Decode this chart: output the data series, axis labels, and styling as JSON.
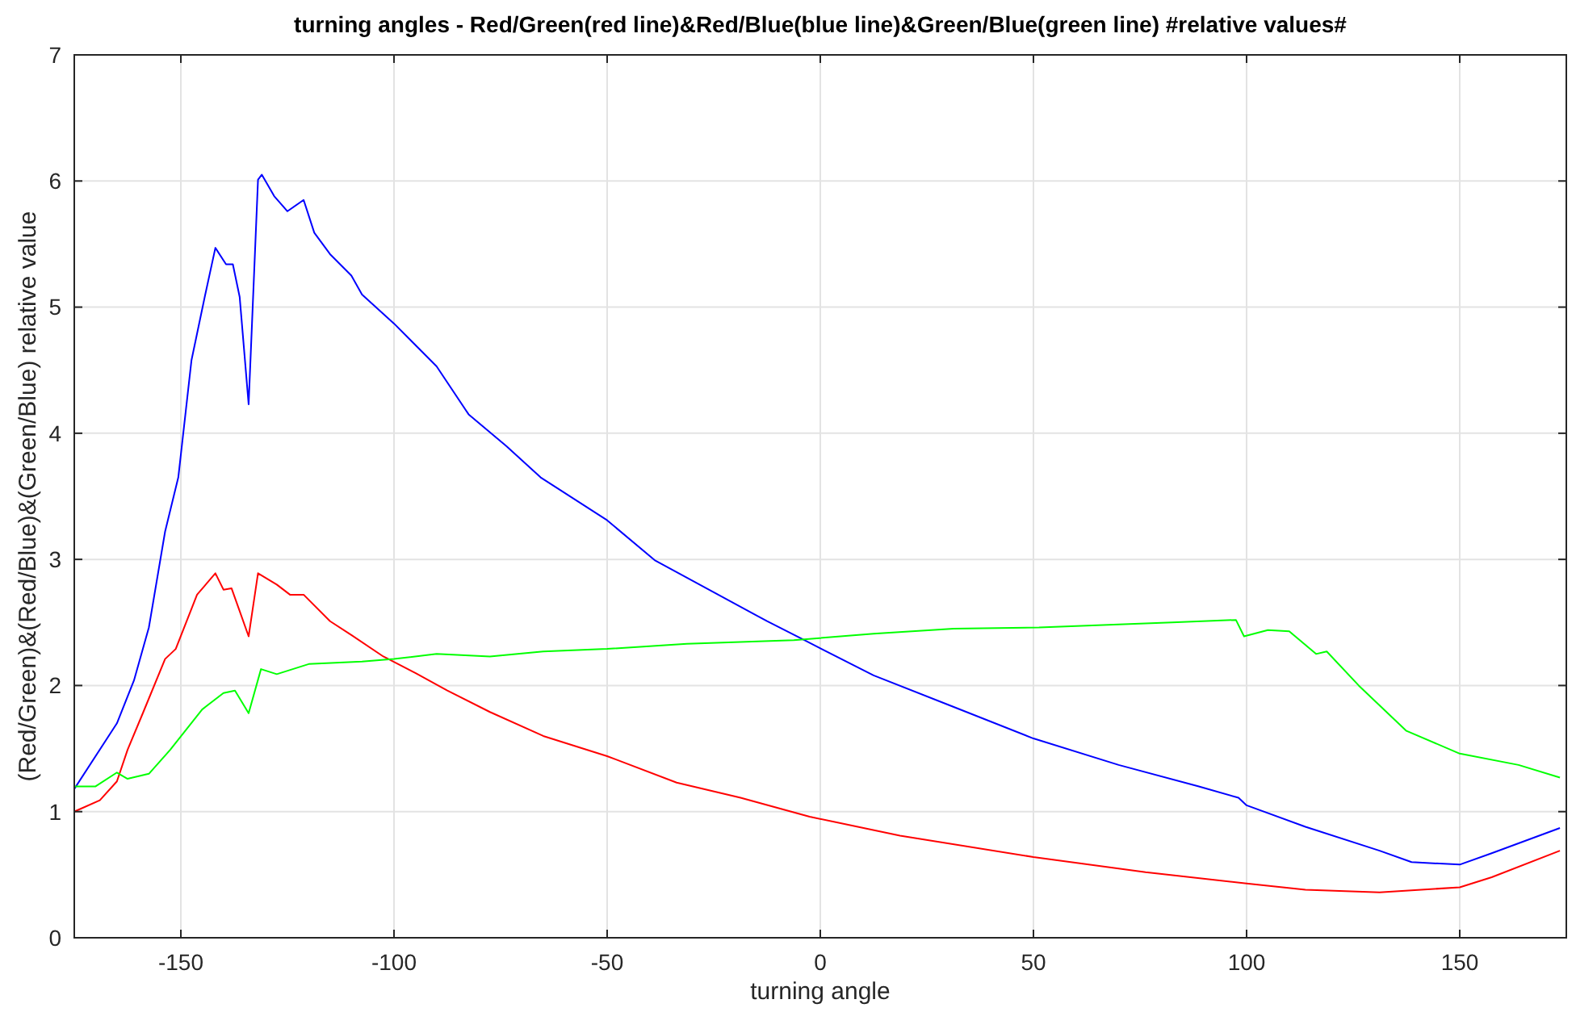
{
  "chart_data": {
    "type": "line",
    "title": "turning angles - Red/Green(red line)&Red/Blue(blue line)&Green/Blue(green line) #relative values#",
    "xlabel": "turning angle",
    "ylabel": "(Red/Green)&(Red/Blue)&(Green/Blue) relative value",
    "xlim": [
      -175,
      175
    ],
    "ylim": [
      0,
      7
    ],
    "xticks": [
      -150,
      -100,
      -50,
      0,
      50,
      100,
      150
    ],
    "yticks": [
      0,
      1,
      2,
      3,
      4,
      5,
      6,
      7
    ],
    "grid": true,
    "line_style": "solid",
    "marker": "none",
    "series": [
      {
        "color": "#0000ff",
        "x": [
          -175,
          -165,
          -161,
          -157.5,
          -153.7,
          -150.6,
          -147.5,
          -144.4,
          -141.9,
          -139.4,
          -137.8,
          -136.2,
          -134.1,
          -131.9,
          -131,
          -128.1,
          -125,
          -121.2,
          -118.7,
          -115,
          -110,
          -107.5,
          -100,
          -90,
          -82.5,
          -73.7,
          -65.6,
          -50,
          -38.7,
          -25,
          -12.5,
          -3.75,
          12.5,
          31.3,
          50,
          70,
          88.8,
          98.1,
          100,
          113.8,
          131.2,
          138.7,
          150,
          157.5,
          173.5
        ],
        "values": [
          1.18,
          1.7,
          2.04,
          2.46,
          3.22,
          3.65,
          4.58,
          5.08,
          5.47,
          5.34,
          5.34,
          5.08,
          4.23,
          6.01,
          6.05,
          5.88,
          5.76,
          5.85,
          5.59,
          5.42,
          5.25,
          5.1,
          4.87,
          4.53,
          4.15,
          3.9,
          3.65,
          3.31,
          2.99,
          2.74,
          2.51,
          2.36,
          2.08,
          1.83,
          1.58,
          1.37,
          1.2,
          1.11,
          1.05,
          0.88,
          0.69,
          0.6,
          0.58,
          0.67,
          0.87
        ]
      },
      {
        "color": "#ff0000",
        "x": [
          -175,
          -169,
          -165,
          -162.5,
          -158.8,
          -153.7,
          -151.2,
          -146.2,
          -141.9,
          -140,
          -138.1,
          -134.1,
          -131.9,
          -127.5,
          -124.4,
          -121.2,
          -115,
          -110,
          -102.5,
          -95,
          -87.5,
          -77.5,
          -65,
          -50,
          -33.7,
          -18.7,
          -2.5,
          18.7,
          50,
          76.3,
          100,
          113.8,
          131.2,
          150,
          157.5,
          173.5
        ],
        "values": [
          1.0,
          1.09,
          1.24,
          1.49,
          1.79,
          2.21,
          2.29,
          2.72,
          2.89,
          2.76,
          2.77,
          2.39,
          2.89,
          2.8,
          2.72,
          2.72,
          2.51,
          2.4,
          2.23,
          2.1,
          1.96,
          1.79,
          1.6,
          1.44,
          1.23,
          1.11,
          0.96,
          0.81,
          0.64,
          0.52,
          0.43,
          0.38,
          0.36,
          0.4,
          0.48,
          0.69
        ]
      },
      {
        "color": "#00ff00",
        "x": [
          -175,
          -170,
          -165,
          -162.5,
          -157.5,
          -152.5,
          -145,
          -140,
          -137.3,
          -134.1,
          -131.2,
          -127.5,
          -120,
          -107.5,
          -100,
          -90,
          -77.5,
          -65,
          -50,
          -31.3,
          -6.2,
          12.5,
          31.3,
          51.3,
          82.5,
          97.5,
          99.4,
          105,
          110,
          116.3,
          118.8,
          126.3,
          137.5,
          150,
          163.8,
          173.5
        ],
        "values": [
          1.2,
          1.2,
          1.31,
          1.26,
          1.3,
          1.49,
          1.81,
          1.94,
          1.96,
          1.78,
          2.13,
          2.09,
          2.17,
          2.19,
          2.21,
          2.25,
          2.23,
          2.27,
          2.29,
          2.33,
          2.36,
          2.41,
          2.45,
          2.46,
          2.5,
          2.52,
          2.39,
          2.44,
          2.43,
          2.25,
          2.27,
          2.0,
          1.64,
          1.46,
          1.37,
          1.27
        ]
      }
    ]
  }
}
